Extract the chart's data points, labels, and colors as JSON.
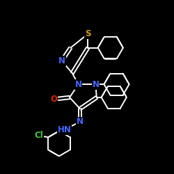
{
  "bg_color": "#000000",
  "bond_color": "#ffffff",
  "bond_width": 1.4,
  "atom_colors": {
    "S": "#d4a017",
    "N": "#4466ff",
    "O": "#dd2200",
    "Cl": "#44cc44",
    "C": "#ffffff"
  },
  "font_size": 8.5,
  "fig_width": 2.5,
  "fig_height": 2.5,
  "dpi": 100
}
